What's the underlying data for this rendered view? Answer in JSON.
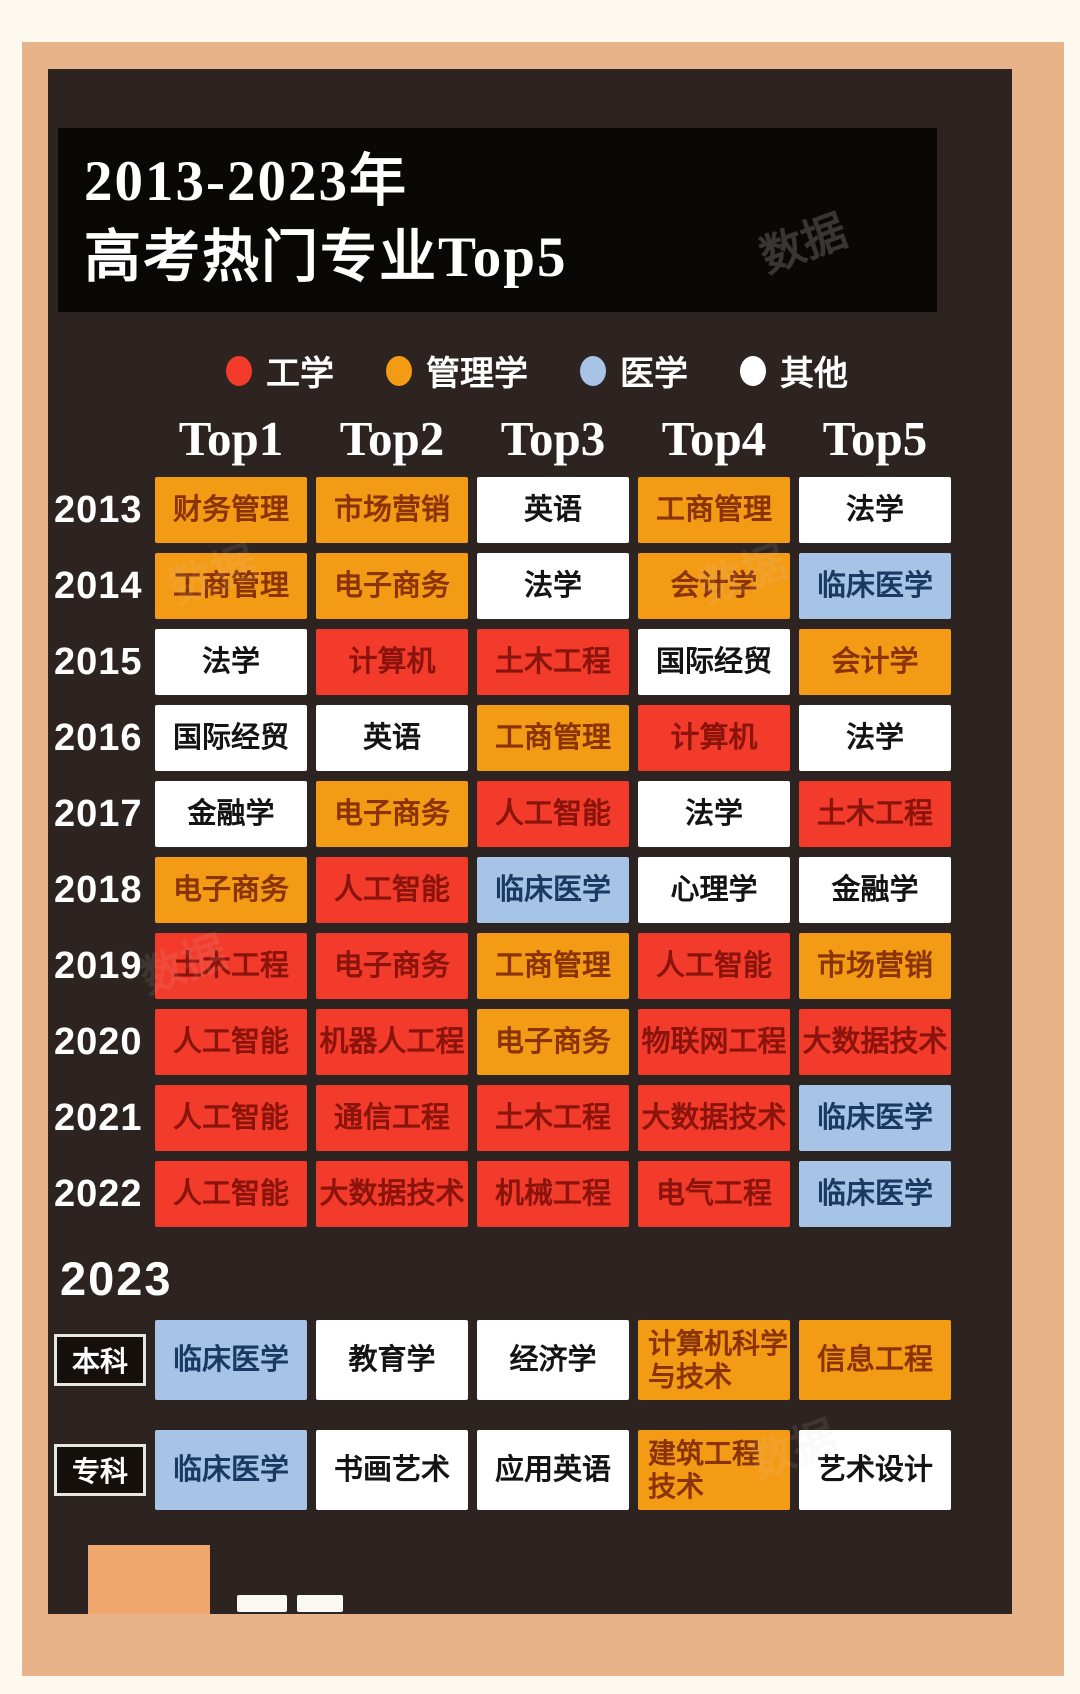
{
  "title": {
    "line1": "2013-2023年",
    "line2": "高考热门专业Top5"
  },
  "watermark": "数据",
  "palette": {
    "red": "#f23b2a",
    "orange": "#f49b15",
    "blue": "#a7c4e6",
    "white": "#ffffff",
    "board": "#2d2421",
    "frame": "#e8b389"
  },
  "section_2023": {
    "heading": "2023"
  },
  "chart_data": {
    "type": "table",
    "title": "2013-2023年 高考热门专业Top5",
    "columns": [
      "Top1",
      "Top2",
      "Top3",
      "Top4",
      "Top5"
    ],
    "legend": [
      {
        "label": "工学",
        "color_key": "red",
        "color": "#f23b2a"
      },
      {
        "label": "管理学",
        "color_key": "orange",
        "color": "#f49b15"
      },
      {
        "label": "医学",
        "color_key": "blue",
        "color": "#a7c4e6"
      },
      {
        "label": "其他",
        "color_key": "white",
        "color": "#ffffff"
      }
    ],
    "rows": [
      {
        "year": "2013",
        "values": [
          "财务管理",
          "市场营销",
          "英语",
          "工商管理",
          "法学"
        ],
        "colors": [
          "orange",
          "orange",
          "white",
          "orange",
          "white"
        ]
      },
      {
        "year": "2014",
        "values": [
          "工商管理",
          "电子商务",
          "法学",
          "会计学",
          "临床医学"
        ],
        "colors": [
          "orange",
          "orange",
          "white",
          "orange",
          "blue"
        ]
      },
      {
        "year": "2015",
        "values": [
          "法学",
          "计算机",
          "土木工程",
          "国际经贸",
          "会计学"
        ],
        "colors": [
          "white",
          "red",
          "red",
          "white",
          "orange"
        ]
      },
      {
        "year": "2016",
        "values": [
          "国际经贸",
          "英语",
          "工商管理",
          "计算机",
          "法学"
        ],
        "colors": [
          "white",
          "white",
          "orange",
          "red",
          "white"
        ]
      },
      {
        "year": "2017",
        "values": [
          "金融学",
          "电子商务",
          "人工智能",
          "法学",
          "土木工程"
        ],
        "colors": [
          "white",
          "orange",
          "red",
          "white",
          "red"
        ]
      },
      {
        "year": "2018",
        "values": [
          "电子商务",
          "人工智能",
          "临床医学",
          "心理学",
          "金融学"
        ],
        "colors": [
          "orange",
          "red",
          "blue",
          "white",
          "white"
        ]
      },
      {
        "year": "2019",
        "values": [
          "土木工程",
          "电子商务",
          "工商管理",
          "人工智能",
          "市场营销"
        ],
        "colors": [
          "red",
          "red",
          "orange",
          "red",
          "orange"
        ]
      },
      {
        "year": "2020",
        "values": [
          "人工智能",
          "机器人工程",
          "电子商务",
          "物联网工程",
          "大数据技术"
        ],
        "colors": [
          "red",
          "red",
          "orange",
          "red",
          "red"
        ]
      },
      {
        "year": "2021",
        "values": [
          "人工智能",
          "通信工程",
          "土木工程",
          "大数据技术",
          "临床医学"
        ],
        "colors": [
          "red",
          "red",
          "red",
          "red",
          "blue"
        ]
      },
      {
        "year": "2022",
        "values": [
          "人工智能",
          "大数据技术",
          "机械工程",
          "电气工程",
          "临床医学"
        ],
        "colors": [
          "red",
          "red",
          "red",
          "red",
          "blue"
        ]
      },
      {
        "year": "2023",
        "degree_label": "本科",
        "values": [
          "临床医学",
          "教育学",
          "经济学",
          "计算机科学\n与技术",
          "信息工程"
        ],
        "colors": [
          "blue",
          "white",
          "white",
          "orange",
          "orange"
        ]
      },
      {
        "year": "2023",
        "degree_label": "专科",
        "values": [
          "临床医学",
          "书画艺术",
          "应用英语",
          "建筑工程\n技术",
          "艺术设计"
        ],
        "colors": [
          "blue",
          "white",
          "white",
          "orange",
          "white"
        ]
      }
    ]
  }
}
